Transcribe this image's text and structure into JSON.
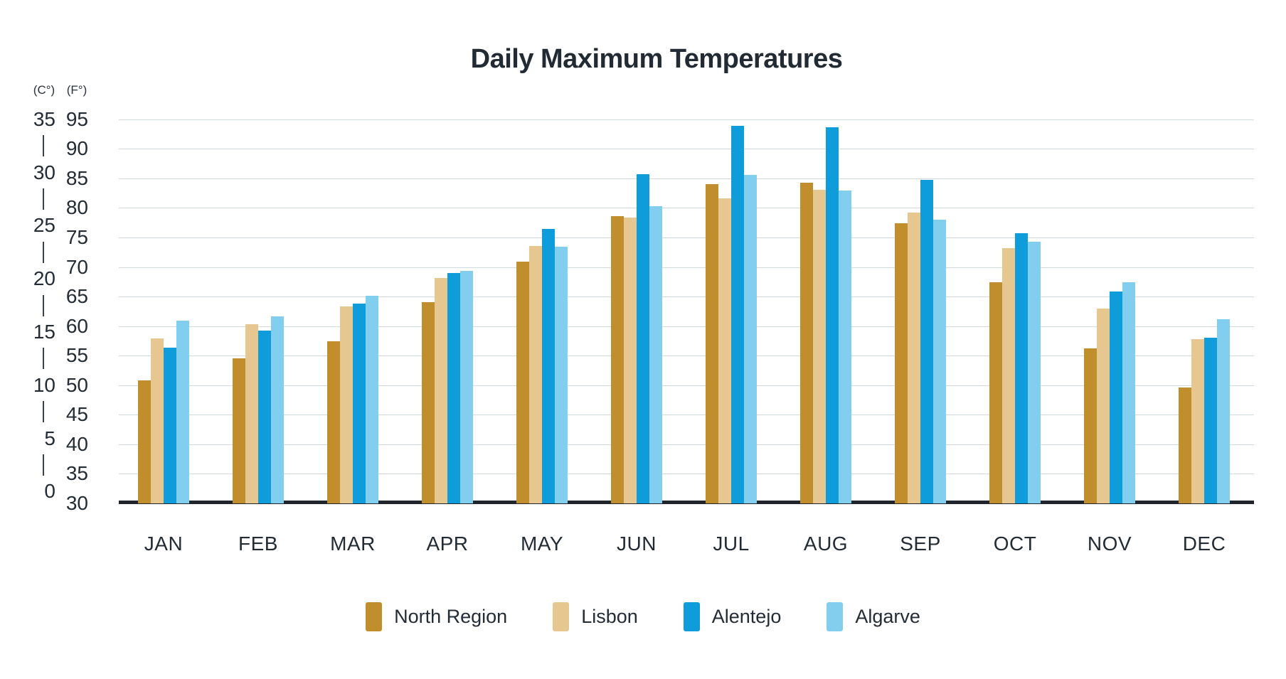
{
  "chart_data": {
    "type": "bar",
    "title": "Daily Maximum Temperatures",
    "categories": [
      "JAN",
      "FEB",
      "MAR",
      "APR",
      "MAY",
      "JUN",
      "JUL",
      "AUG",
      "SEP",
      "OCT",
      "NOV",
      "DEC"
    ],
    "unit": "°F",
    "series": [
      {
        "name": "North Region",
        "color": "#C08E2D",
        "values": [
          50.8,
          54.5,
          57.4,
          64.0,
          70.9,
          78.6,
          84.0,
          84.2,
          77.4,
          67.4,
          56.2,
          49.6
        ]
      },
      {
        "name": "Lisbon",
        "color": "#E6C78F",
        "values": [
          57.9,
          60.3,
          63.3,
          68.1,
          73.6,
          78.4,
          81.6,
          83.1,
          79.2,
          73.2,
          63.0,
          57.8
        ]
      },
      {
        "name": "Alentejo",
        "color": "#0E9CDB",
        "values": [
          56.4,
          59.2,
          63.8,
          69.0,
          76.4,
          85.7,
          93.9,
          93.6,
          84.7,
          75.7,
          65.9,
          58.0
        ]
      },
      {
        "name": "Algarve",
        "color": "#82CEEF",
        "values": [
          60.9,
          61.7,
          65.1,
          69.3,
          73.4,
          80.3,
          85.6,
          82.9,
          78.0,
          74.3,
          67.4,
          61.1
        ]
      }
    ],
    "y_axis": {
      "unit_labels": {
        "celsius": "(C°)",
        "fahrenheit": "(F°)"
      },
      "fahrenheit_ticks": [
        95,
        90,
        85,
        80,
        75,
        70,
        65,
        60,
        55,
        50,
        45,
        40,
        35,
        30
      ],
      "celsius_ticks": [
        35,
        30,
        25,
        20,
        15,
        10,
        5,
        0
      ],
      "ylim_f": [
        30,
        95
      ],
      "note": "dual scale on left side; °C labels placed at their °F-equivalent heights"
    },
    "grid": {
      "horizontal": true,
      "interval_f": 5
    },
    "legend_position": "bottom",
    "colors": {
      "text": "#232C35",
      "gridline": "#D1D9DD",
      "baseline": "#20262C",
      "background": "#FFFFFF"
    }
  }
}
